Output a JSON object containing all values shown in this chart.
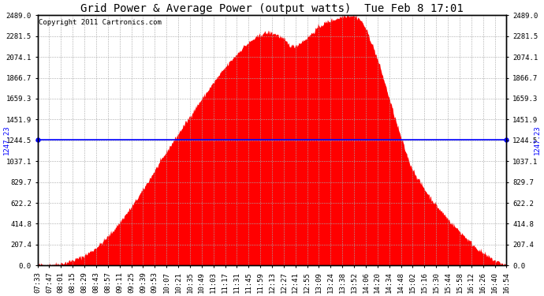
{
  "title": "Grid Power & Average Power (output watts)  Tue Feb 8 17:01",
  "copyright": "Copyright 2011 Cartronics.com",
  "average_value": 1247.23,
  "y_max": 2489.0,
  "y_min": 0.0,
  "y_ticks": [
    0.0,
    207.4,
    414.8,
    622.2,
    829.7,
    1037.1,
    1244.5,
    1451.9,
    1659.3,
    1866.7,
    2074.1,
    2281.5,
    2489.0
  ],
  "y_tick_labels": [
    "0.0",
    "207.4",
    "414.8",
    "622.2",
    "829.7",
    "1037.1",
    "1244.5",
    "1451.9",
    "1659.3",
    "1866.7",
    "2074.1",
    "2281.5",
    "2489.0"
  ],
  "area_color": "#FF0000",
  "avg_line_color": "#0000FF",
  "background_color": "#FFFFFF",
  "plot_bg_color": "#FFFFFF",
  "grid_color": "#AAAAAA",
  "title_fontsize": 10,
  "copyright_fontsize": 6.5,
  "tick_fontsize": 6.5,
  "avg_label_fontsize": 6.5,
  "x_tick_labels": [
    "07:33",
    "07:47",
    "08:01",
    "08:15",
    "08:29",
    "08:43",
    "08:57",
    "09:11",
    "09:25",
    "09:39",
    "09:53",
    "10:07",
    "10:21",
    "10:35",
    "10:49",
    "11:03",
    "11:17",
    "11:31",
    "11:45",
    "11:59",
    "12:13",
    "12:27",
    "12:41",
    "12:55",
    "13:09",
    "13:24",
    "13:38",
    "13:52",
    "14:06",
    "14:20",
    "14:34",
    "14:48",
    "15:02",
    "15:16",
    "15:30",
    "15:44",
    "15:58",
    "16:12",
    "16:26",
    "16:40",
    "16:54"
  ],
  "envelope_points": [
    [
      0.0,
      5
    ],
    [
      0.02,
      8
    ],
    [
      0.04,
      15
    ],
    [
      0.06,
      30
    ],
    [
      0.08,
      60
    ],
    [
      0.1,
      100
    ],
    [
      0.12,
      160
    ],
    [
      0.14,
      240
    ],
    [
      0.16,
      340
    ],
    [
      0.18,
      460
    ],
    [
      0.2,
      580
    ],
    [
      0.22,
      720
    ],
    [
      0.24,
      870
    ],
    [
      0.26,
      1020
    ],
    [
      0.28,
      1170
    ],
    [
      0.3,
      1310
    ],
    [
      0.32,
      1450
    ],
    [
      0.34,
      1590
    ],
    [
      0.36,
      1720
    ],
    [
      0.38,
      1850
    ],
    [
      0.4,
      1970
    ],
    [
      0.42,
      2080
    ],
    [
      0.44,
      2180
    ],
    [
      0.46,
      2250
    ],
    [
      0.48,
      2310
    ],
    [
      0.495,
      2320
    ],
    [
      0.51,
      2300
    ],
    [
      0.525,
      2250
    ],
    [
      0.535,
      2200
    ],
    [
      0.545,
      2180
    ],
    [
      0.555,
      2200
    ],
    [
      0.57,
      2250
    ],
    [
      0.585,
      2310
    ],
    [
      0.6,
      2380
    ],
    [
      0.62,
      2430
    ],
    [
      0.64,
      2460
    ],
    [
      0.655,
      2489
    ],
    [
      0.665,
      2489
    ],
    [
      0.675,
      2485
    ],
    [
      0.685,
      2460
    ],
    [
      0.695,
      2400
    ],
    [
      0.705,
      2300
    ],
    [
      0.715,
      2180
    ],
    [
      0.725,
      2050
    ],
    [
      0.735,
      1900
    ],
    [
      0.745,
      1740
    ],
    [
      0.755,
      1580
    ],
    [
      0.765,
      1420
    ],
    [
      0.775,
      1270
    ],
    [
      0.785,
      1130
    ],
    [
      0.795,
      1000
    ],
    [
      0.81,
      870
    ],
    [
      0.825,
      760
    ],
    [
      0.84,
      660
    ],
    [
      0.855,
      570
    ],
    [
      0.87,
      490
    ],
    [
      0.885,
      410
    ],
    [
      0.9,
      340
    ],
    [
      0.915,
      270
    ],
    [
      0.93,
      200
    ],
    [
      0.945,
      140
    ],
    [
      0.96,
      90
    ],
    [
      0.975,
      50
    ],
    [
      0.99,
      20
    ],
    [
      1.0,
      5
    ]
  ]
}
